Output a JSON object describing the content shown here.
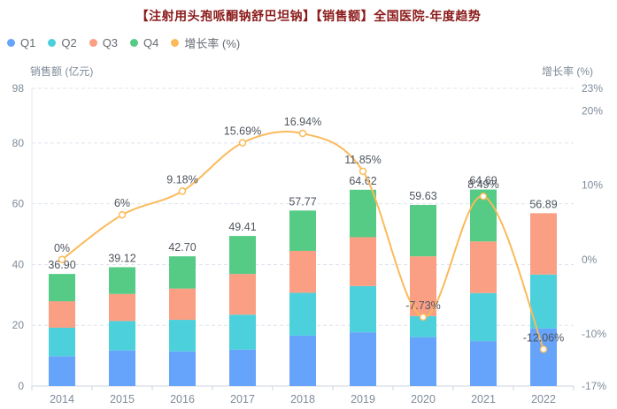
{
  "title": "【注射用头孢哌酮钠舒巴坦钠】【销售额】全国医院-年度趋势",
  "colors": {
    "title_text": "#8B1A1A",
    "legend_text": "#666B73",
    "tick_text": "#7E8B99",
    "label_text": "#4E555E",
    "gridline": "#DDE4EE",
    "axis_line": "#CCD6E0",
    "marker_fill": "#FFFFFF"
  },
  "legend": {
    "items": [
      {
        "key": "q1",
        "label": "Q1",
        "color": "#66A3FA"
      },
      {
        "key": "q2",
        "label": "Q2",
        "color": "#4CD0DB"
      },
      {
        "key": "q3",
        "label": "Q3",
        "color": "#FA9F84"
      },
      {
        "key": "q4",
        "label": "Q4",
        "color": "#55CB86"
      },
      {
        "key": "growth-rate",
        "label": "增长率 (%)",
        "color": "#FBBA5B"
      }
    ]
  },
  "chart_data": {
    "type": "bar",
    "subtype": "stacked-bars-with-smooth-line",
    "title": "【注射用头孢哌酮钠舒巴坦钠】【销售额】全国医院-年度趋势",
    "categories": [
      "2014",
      "2015",
      "2016",
      "2017",
      "2018",
      "2019",
      "2020",
      "2021",
      "2022"
    ],
    "series": [
      {
        "name": "Q1",
        "type": "bar",
        "stack": true,
        "color": "#66A3FA",
        "values": [
          9.8,
          11.7,
          11.4,
          12.0,
          16.6,
          17.7,
          16.1,
          14.8,
          19.0
        ]
      },
      {
        "name": "Q2",
        "type": "bar",
        "stack": true,
        "color": "#4CD0DB",
        "values": [
          9.4,
          9.7,
          10.4,
          11.5,
          14.1,
          15.2,
          6.9,
          15.8,
          17.7
        ]
      },
      {
        "name": "Q3",
        "type": "bar",
        "stack": true,
        "color": "#FA9F84",
        "values": [
          8.7,
          8.9,
          10.3,
          13.4,
          13.8,
          16.1,
          19.7,
          17.0,
          20.19
        ]
      },
      {
        "name": "Q4",
        "type": "bar",
        "stack": true,
        "color": "#55CB86",
        "values": [
          9.0,
          8.82,
          10.6,
          12.51,
          13.27,
          15.62,
          16.93,
          17.09,
          0
        ]
      },
      {
        "name": "增长率 (%)",
        "type": "line",
        "smooth": true,
        "color": "#FBBA5B",
        "values": [
          0,
          6,
          9.18,
          15.69,
          16.94,
          11.85,
          -7.73,
          8.49,
          -12.06
        ],
        "point_labels": [
          "0%",
          "6%",
          "9.18%",
          "15.69%",
          "16.94%",
          "11.85%",
          "-7.73%",
          "8.49%",
          "-12.06%"
        ]
      }
    ],
    "bar_totals": [
      36.9,
      39.12,
      42.7,
      49.41,
      57.77,
      64.62,
      59.63,
      64.69,
      56.89
    ],
    "bar_total_labels": [
      "36.90",
      "39.12",
      "42.70",
      "49.41",
      "57.77",
      "64.62",
      "59.63",
      "64.69",
      "56.89"
    ],
    "left_axis": {
      "title": "销售额 (亿元)",
      "min": 0,
      "max": 98,
      "ticks": [
        {
          "value": 0,
          "label": "0"
        },
        {
          "value": 20,
          "label": "20"
        },
        {
          "value": 40,
          "label": "40"
        },
        {
          "value": 60,
          "label": "60"
        },
        {
          "value": 80,
          "label": "80"
        },
        {
          "value": 98,
          "label": "98"
        }
      ]
    },
    "right_axis": {
      "title": "增长率 (%)",
      "min": -17,
      "max": 23,
      "ticks": [
        {
          "value": -17,
          "label": "-17%"
        },
        {
          "value": -10,
          "label": "-10%"
        },
        {
          "value": 0,
          "label": "0%"
        },
        {
          "value": 10,
          "label": "10%"
        },
        {
          "value": 20,
          "label": "20%"
        },
        {
          "value": 23,
          "label": "23%"
        }
      ]
    },
    "grid": {
      "dashed": true,
      "gridline_values": [
        20,
        40,
        60,
        80,
        98
      ]
    },
    "legend_position": "top-left"
  }
}
